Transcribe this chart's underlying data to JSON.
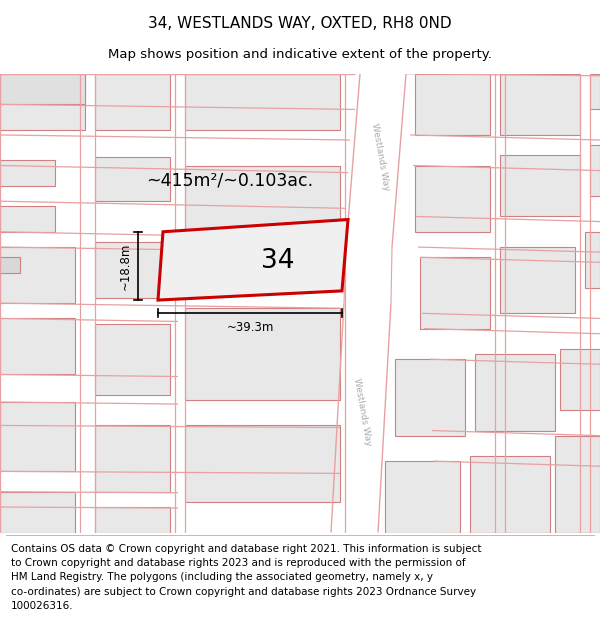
{
  "title": "34, WESTLANDS WAY, OXTED, RH8 0ND",
  "subtitle": "Map shows position and indicative extent of the property.",
  "footer": "Contains OS data © Crown copyright and database right 2021. This information is subject\nto Crown copyright and database rights 2023 and is reproduced with the permission of\nHM Land Registry. The polygons (including the associated geometry, namely x, y\nco-ordinates) are subject to Crown copyright and database rights 2023 Ordnance Survey\n100026316.",
  "area_label": "~415m²/~0.103ac.",
  "number_label": "34",
  "width_label": "~39.3m",
  "height_label": "~18.8m",
  "road_label_1": "Westlands Way",
  "road_label_2": "Westlands Way",
  "title_fontsize": 11,
  "subtitle_fontsize": 9.5,
  "footer_fontsize": 7.5,
  "block_fill": "#e8e8e8",
  "block_edge": "#d08080",
  "road_line_color": "#e8a0a0",
  "property_edge": "#cc0000",
  "property_fill": "#f0f0f0",
  "road_fill": "#f5f5f5",
  "map_bg": "#ffffff",
  "road_label_color": "#aaaaaa",
  "dim_color": "#000000"
}
